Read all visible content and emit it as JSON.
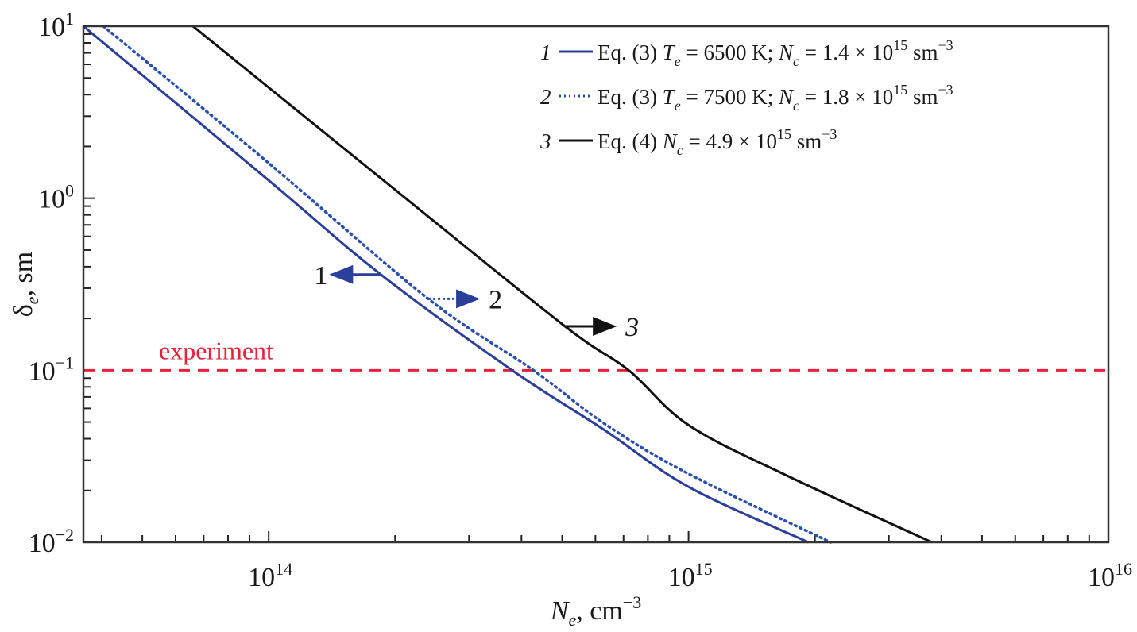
{
  "chart_data": {
    "type": "line",
    "xscale": "log",
    "yscale": "log",
    "xlim": [
      36200000000000.0,
      1e+16
    ],
    "ylim": [
      0.01,
      10
    ],
    "xlabel": {
      "main": "N",
      "sub": "e",
      "rest": ", cm",
      "sup": "−3"
    },
    "ylabel": {
      "main": "δ",
      "sub": "e",
      "rest": ", sm"
    },
    "xticks": [
      {
        "value": 100000000000000.0,
        "base": "10",
        "exp": "14"
      },
      {
        "value": 1000000000000000.0,
        "base": "10",
        "exp": "15"
      },
      {
        "value": 1e+16,
        "base": "10",
        "exp": "16"
      }
    ],
    "yticks": [
      {
        "value": 10,
        "base": "10",
        "exp": "1"
      },
      {
        "value": 1,
        "base": "10",
        "exp": "0"
      },
      {
        "value": 0.1,
        "base": "10",
        "exp": "−1"
      },
      {
        "value": 0.01,
        "base": "10",
        "exp": "−2"
      }
    ],
    "grid": false,
    "legend_position": "top-right",
    "series": [
      {
        "id": "1",
        "name": "1",
        "color": "#2a3f9a",
        "style": "solid",
        "x": [
          36200000000000.0,
          100000000000000.0,
          185000000000000.0,
          380000000000000.0,
          630000000000000.0,
          1000000000000000.0,
          1930000000000000.0
        ],
        "y": [
          10,
          1.27,
          0.36,
          0.1,
          0.045,
          0.021,
          0.01
        ],
        "legend": [
          {
            "t": "1",
            "s": "num"
          },
          {
            "t": "Eq. (3) ",
            "s": ""
          },
          {
            "t": "T",
            "s": "i"
          },
          {
            "t": "e",
            "s": "sub"
          },
          {
            "t": " = 6500 K; ",
            "s": ""
          },
          {
            "t": "N",
            "s": "i"
          },
          {
            "t": "c",
            "s": "sub"
          },
          {
            "t": " = 1.4 × 10",
            "s": ""
          },
          {
            "t": "15",
            "s": "sup"
          },
          {
            "t": " sm",
            "s": ""
          },
          {
            "t": "−3",
            "s": "sup"
          }
        ]
      },
      {
        "id": "2",
        "name": "2",
        "color": "#2a4fb0",
        "style": "dotted",
        "x": [
          40400000000000.0,
          100000000000000.0,
          240000000000000.0,
          427000000000000.0,
          630000000000000.0,
          1000000000000000.0,
          2180000000000000.0
        ],
        "y": [
          10,
          1.6,
          0.26,
          0.1,
          0.049,
          0.025,
          0.01
        ],
        "legend": [
          {
            "t": "2",
            "s": "num"
          },
          {
            "t": "Eq. (3) ",
            "s": ""
          },
          {
            "t": "T",
            "s": "i"
          },
          {
            "t": "e",
            "s": "sub"
          },
          {
            "t": " = 7500 K; ",
            "s": ""
          },
          {
            "t": "N",
            "s": "i"
          },
          {
            "t": "c",
            "s": "sub"
          },
          {
            "t": " = 1.8 × 10",
            "s": ""
          },
          {
            "t": "15",
            "s": "sup"
          },
          {
            "t": " sm",
            "s": ""
          },
          {
            "t": "−3",
            "s": "sup"
          }
        ]
      },
      {
        "id": "3",
        "name": "3",
        "color": "#111111",
        "style": "solid",
        "x": [
          66000000000000.0,
          100000000000000.0,
          200000000000000.0,
          508000000000000.0,
          720000000000000.0,
          1000000000000000.0,
          1740000000000000.0,
          3800000000000000.0
        ],
        "y": [
          10,
          4.4,
          1.12,
          0.18,
          0.1,
          0.048,
          0.024,
          0.01
        ],
        "legend": [
          {
            "t": "3",
            "s": "num"
          },
          {
            "t": "Eq. (4) ",
            "s": ""
          },
          {
            "t": "N",
            "s": "i"
          },
          {
            "t": "c",
            "s": "sub"
          },
          {
            "t": " = 4.9 × 10",
            "s": ""
          },
          {
            "t": "15",
            "s": "sup"
          },
          {
            "t": " sm",
            "s": ""
          },
          {
            "t": "−3",
            "s": "sup"
          }
        ]
      }
    ],
    "reference_line": {
      "label": "experiment",
      "y": 0.1,
      "color": "#e8203a",
      "style": "dashed"
    },
    "annotations": [
      {
        "text": "1",
        "series": "1",
        "at": {
          "x": 185000000000000.0,
          "y": 0.36
        },
        "direction": "left",
        "italic": false
      },
      {
        "text": "2",
        "series": "2",
        "at": {
          "x": 240000000000000.0,
          "y": 0.26
        },
        "direction": "right",
        "italic": false
      },
      {
        "text": "3",
        "series": "3",
        "at": {
          "x": 508000000000000.0,
          "y": 0.18
        },
        "direction": "right",
        "italic": true
      }
    ]
  }
}
